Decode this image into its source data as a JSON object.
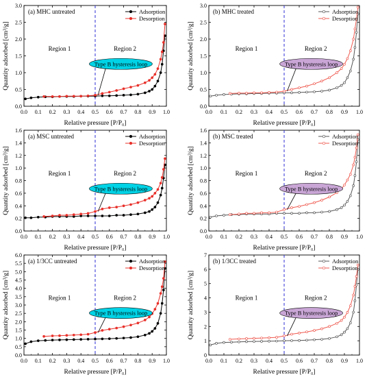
{
  "figure": {
    "x_axis_label": "Relative pressure [P/P₀]",
    "y_axis_label": "Quantity adsorbed [cm³/g]",
    "region1_label": "Region 1",
    "region2_label": "Region 2",
    "loop_label": "Type B hysteresis loop",
    "divider_x": 0.5
  },
  "chart_data": [
    {
      "type": "line",
      "panel_label": "(a) MHC untreated",
      "xlim": [
        0.0,
        1.0
      ],
      "ylim": [
        0.0,
        3.0
      ],
      "xticks": [
        "0.0",
        "0.1",
        "0.2",
        "0.3",
        "0.4",
        "0.5",
        "0.6",
        "0.7",
        "0.8",
        "0.9",
        "1.0"
      ],
      "yticks": [
        "0.0",
        "0.5",
        "1.0",
        "1.5",
        "2.0",
        "2.5",
        "3.0"
      ],
      "legend_position": "top-right",
      "grid": false,
      "loop_fill": "#00d3e6",
      "marker": "filled",
      "series": [
        {
          "name": "Adsorption",
          "color": "#000000",
          "x": [
            0.01,
            0.05,
            0.1,
            0.15,
            0.2,
            0.25,
            0.3,
            0.35,
            0.4,
            0.45,
            0.5,
            0.55,
            0.6,
            0.65,
            0.7,
            0.75,
            0.8,
            0.85,
            0.88,
            0.9,
            0.92,
            0.94,
            0.96,
            0.97,
            0.98,
            0.99
          ],
          "y": [
            0.22,
            0.25,
            0.27,
            0.28,
            0.28,
            0.29,
            0.29,
            0.29,
            0.3,
            0.3,
            0.3,
            0.31,
            0.31,
            0.32,
            0.33,
            0.34,
            0.36,
            0.4,
            0.45,
            0.5,
            0.6,
            0.75,
            1.0,
            1.25,
            1.65,
            2.1
          ]
        },
        {
          "name": "Desorption",
          "color": "#e8302a",
          "x": [
            0.14,
            0.2,
            0.25,
            0.3,
            0.35,
            0.4,
            0.45,
            0.5,
            0.55,
            0.6,
            0.65,
            0.7,
            0.75,
            0.8,
            0.85,
            0.88,
            0.9,
            0.92,
            0.94,
            0.96,
            0.97,
            0.98,
            0.99
          ],
          "y": [
            0.29,
            0.29,
            0.29,
            0.3,
            0.3,
            0.3,
            0.31,
            0.33,
            0.38,
            0.42,
            0.47,
            0.52,
            0.57,
            0.62,
            0.7,
            0.77,
            0.85,
            0.95,
            1.12,
            1.4,
            1.62,
            1.9,
            2.45
          ]
        }
      ]
    },
    {
      "type": "line",
      "panel_label": "(b) MHC treated",
      "xlim": [
        0.0,
        1.0
      ],
      "ylim": [
        0.0,
        3.0
      ],
      "xticks": [
        "0.0",
        "0.1",
        "0.2",
        "0.3",
        "0.4",
        "0.5",
        "0.6",
        "0.7",
        "0.8",
        "0.9",
        "1.0"
      ],
      "yticks": [
        "0.0",
        "0.5",
        "1.0",
        "1.5",
        "2.0",
        "2.5",
        "3.0"
      ],
      "legend_position": "top-right",
      "grid": false,
      "loop_fill": "#c9a6d6",
      "marker": "open",
      "series": [
        {
          "name": "Adsorption",
          "color": "#555555",
          "x": [
            0.01,
            0.05,
            0.1,
            0.15,
            0.2,
            0.25,
            0.3,
            0.35,
            0.4,
            0.45,
            0.5,
            0.55,
            0.6,
            0.65,
            0.7,
            0.75,
            0.8,
            0.85,
            0.88,
            0.9,
            0.92,
            0.94,
            0.96,
            0.97,
            0.98,
            0.99
          ],
          "y": [
            0.3,
            0.33,
            0.35,
            0.36,
            0.37,
            0.37,
            0.38,
            0.38,
            0.39,
            0.39,
            0.4,
            0.4,
            0.41,
            0.42,
            0.43,
            0.45,
            0.48,
            0.55,
            0.62,
            0.7,
            0.85,
            1.05,
            1.4,
            1.75,
            2.2,
            2.75
          ]
        },
        {
          "name": "Desorption",
          "color": "#ef5a50",
          "x": [
            0.14,
            0.2,
            0.25,
            0.3,
            0.35,
            0.4,
            0.45,
            0.5,
            0.55,
            0.6,
            0.65,
            0.7,
            0.75,
            0.8,
            0.85,
            0.88,
            0.9,
            0.92,
            0.94,
            0.96,
            0.97,
            0.98,
            0.99
          ],
          "y": [
            0.38,
            0.39,
            0.39,
            0.4,
            0.4,
            0.41,
            0.42,
            0.45,
            0.5,
            0.55,
            0.6,
            0.67,
            0.75,
            0.85,
            1.0,
            1.12,
            1.25,
            1.42,
            1.65,
            2.0,
            2.3,
            2.6,
            2.95
          ]
        }
      ]
    },
    {
      "type": "line",
      "panel_label": "(a) MSC untreated",
      "xlim": [
        0.0,
        1.0
      ],
      "ylim": [
        0.0,
        1.6
      ],
      "xticks": [
        "0.0",
        "0.1",
        "0.2",
        "0.3",
        "0.4",
        "0.5",
        "0.6",
        "0.7",
        "0.8",
        "0.9",
        "1.0"
      ],
      "yticks": [
        "0.0",
        "0.2",
        "0.4",
        "0.6",
        "0.8",
        "1.0",
        "1.2",
        "1.4",
        "1.6"
      ],
      "legend_position": "top-right",
      "grid": false,
      "loop_fill": "#00d3e6",
      "marker": "filled",
      "series": [
        {
          "name": "Adsorption",
          "color": "#000000",
          "x": [
            0.01,
            0.05,
            0.1,
            0.15,
            0.2,
            0.25,
            0.3,
            0.35,
            0.4,
            0.45,
            0.5,
            0.55,
            0.6,
            0.65,
            0.7,
            0.75,
            0.8,
            0.85,
            0.88,
            0.9,
            0.92,
            0.94,
            0.96,
            0.97,
            0.98,
            0.99
          ],
          "y": [
            0.21,
            0.21,
            0.22,
            0.22,
            0.23,
            0.23,
            0.23,
            0.23,
            0.24,
            0.24,
            0.24,
            0.24,
            0.24,
            0.25,
            0.25,
            0.26,
            0.27,
            0.29,
            0.31,
            0.34,
            0.38,
            0.45,
            0.57,
            0.68,
            0.84,
            1.05
          ]
        },
        {
          "name": "Desorption",
          "color": "#e8302a",
          "x": [
            0.14,
            0.2,
            0.25,
            0.3,
            0.35,
            0.4,
            0.45,
            0.5,
            0.55,
            0.6,
            0.65,
            0.7,
            0.75,
            0.8,
            0.85,
            0.88,
            0.9,
            0.92,
            0.94,
            0.96,
            0.97,
            0.98,
            0.99
          ],
          "y": [
            0.23,
            0.24,
            0.25,
            0.25,
            0.26,
            0.27,
            0.28,
            0.31,
            0.35,
            0.37,
            0.38,
            0.4,
            0.42,
            0.45,
            0.49,
            0.52,
            0.55,
            0.6,
            0.66,
            0.76,
            0.85,
            0.98,
            1.15
          ]
        }
      ]
    },
    {
      "type": "line",
      "panel_label": "(b) MSC treated",
      "xlim": [
        0.0,
        1.0
      ],
      "ylim": [
        0.0,
        1.6
      ],
      "xticks": [
        "0.0",
        "0.1",
        "0.2",
        "0.3",
        "0.4",
        "0.5",
        "0.6",
        "0.7",
        "0.8",
        "0.9",
        "1.0"
      ],
      "yticks": [
        "0.0",
        "0.2",
        "0.4",
        "0.6",
        "0.8",
        "1.0",
        "1.2",
        "1.4",
        "1.6"
      ],
      "legend_position": "top-right",
      "grid": false,
      "loop_fill": "#c9a6d6",
      "marker": "open",
      "series": [
        {
          "name": "Adsorption",
          "color": "#555555",
          "x": [
            0.01,
            0.05,
            0.1,
            0.15,
            0.2,
            0.25,
            0.3,
            0.35,
            0.4,
            0.45,
            0.5,
            0.55,
            0.6,
            0.65,
            0.7,
            0.75,
            0.8,
            0.85,
            0.88,
            0.9,
            0.92,
            0.94,
            0.96,
            0.97,
            0.98,
            0.99
          ],
          "y": [
            0.22,
            0.24,
            0.25,
            0.26,
            0.26,
            0.27,
            0.27,
            0.27,
            0.27,
            0.28,
            0.28,
            0.28,
            0.28,
            0.29,
            0.29,
            0.3,
            0.31,
            0.34,
            0.37,
            0.41,
            0.47,
            0.56,
            0.72,
            0.88,
            1.1,
            1.45
          ]
        },
        {
          "name": "Desorption",
          "color": "#ef5a50",
          "x": [
            0.14,
            0.2,
            0.25,
            0.3,
            0.35,
            0.4,
            0.45,
            0.5,
            0.55,
            0.6,
            0.65,
            0.7,
            0.75,
            0.8,
            0.85,
            0.88,
            0.9,
            0.92,
            0.94,
            0.96,
            0.97,
            0.98,
            0.99
          ],
          "y": [
            0.26,
            0.27,
            0.28,
            0.28,
            0.29,
            0.29,
            0.3,
            0.34,
            0.37,
            0.39,
            0.42,
            0.45,
            0.49,
            0.54,
            0.61,
            0.67,
            0.73,
            0.81,
            0.9,
            1.05,
            1.17,
            1.32,
            1.53
          ]
        }
      ]
    },
    {
      "type": "line",
      "panel_label": "(a) 1/3CC untreated",
      "xlim": [
        0.0,
        1.0
      ],
      "ylim": [
        0.0,
        6.0
      ],
      "xticks": [
        "0.0",
        "0.1",
        "0.2",
        "0.3",
        "0.4",
        "0.5",
        "0.6",
        "0.7",
        "0.8",
        "0.9",
        "1.0"
      ],
      "yticks": [
        "0.0",
        "0.5",
        "1.0",
        "1.5",
        "2.0",
        "2.5",
        "3.0",
        "3.5",
        "4.0",
        "4.5",
        "5.0",
        "5.5",
        "6.0"
      ],
      "legend_position": "top-right",
      "grid": false,
      "loop_fill": "#00d3e6",
      "marker": "filled",
      "series": [
        {
          "name": "Adsorption",
          "color": "#000000",
          "x": [
            0.01,
            0.05,
            0.1,
            0.15,
            0.2,
            0.25,
            0.3,
            0.35,
            0.4,
            0.45,
            0.5,
            0.55,
            0.6,
            0.65,
            0.7,
            0.75,
            0.8,
            0.85,
            0.88,
            0.9,
            0.92,
            0.94,
            0.96,
            0.97,
            0.98,
            0.99
          ],
          "y": [
            0.68,
            0.8,
            0.86,
            0.88,
            0.9,
            0.91,
            0.92,
            0.93,
            0.94,
            0.95,
            0.96,
            0.97,
            0.98,
            1.0,
            1.02,
            1.05,
            1.1,
            1.2,
            1.3,
            1.42,
            1.6,
            1.9,
            2.5,
            3.1,
            3.9,
            5.2
          ]
        },
        {
          "name": "Desorption",
          "color": "#e8302a",
          "x": [
            0.14,
            0.2,
            0.25,
            0.3,
            0.35,
            0.4,
            0.45,
            0.5,
            0.55,
            0.6,
            0.65,
            0.7,
            0.75,
            0.8,
            0.85,
            0.88,
            0.9,
            0.92,
            0.94,
            0.96,
            0.97,
            0.98,
            0.99
          ],
          "y": [
            1.12,
            1.15,
            1.16,
            1.18,
            1.2,
            1.22,
            1.25,
            1.35,
            1.48,
            1.55,
            1.62,
            1.7,
            1.8,
            1.92,
            2.1,
            2.28,
            2.48,
            2.75,
            3.1,
            3.7,
            4.1,
            4.6,
            5.6
          ]
        }
      ]
    },
    {
      "type": "line",
      "panel_label": "(b) 1/3CC treated",
      "xlim": [
        0.0,
        1.0
      ],
      "ylim": [
        0.0,
        7.0
      ],
      "xticks": [
        "0.0",
        "0.1",
        "0.2",
        "0.3",
        "0.4",
        "0.5",
        "0.6",
        "0.7",
        "0.8",
        "0.9",
        "1.0"
      ],
      "yticks": [
        "0",
        "1",
        "2",
        "3",
        "4",
        "5",
        "6",
        "7"
      ],
      "legend_position": "top-right",
      "grid": false,
      "loop_fill": "#c9a6d6",
      "marker": "open",
      "series": [
        {
          "name": "Adsorption",
          "color": "#555555",
          "x": [
            0.01,
            0.05,
            0.1,
            0.15,
            0.2,
            0.25,
            0.3,
            0.35,
            0.4,
            0.45,
            0.5,
            0.55,
            0.6,
            0.65,
            0.7,
            0.75,
            0.8,
            0.85,
            0.88,
            0.9,
            0.92,
            0.94,
            0.96,
            0.97,
            0.98,
            0.99
          ],
          "y": [
            0.7,
            0.82,
            0.88,
            0.9,
            0.92,
            0.94,
            0.95,
            0.96,
            0.97,
            0.98,
            1.0,
            1.01,
            1.02,
            1.04,
            1.07,
            1.1,
            1.16,
            1.28,
            1.42,
            1.6,
            1.85,
            2.25,
            3.0,
            3.8,
            4.9,
            6.0
          ]
        },
        {
          "name": "Desorption",
          "color": "#ef5a50",
          "x": [
            0.14,
            0.2,
            0.25,
            0.3,
            0.35,
            0.4,
            0.45,
            0.5,
            0.55,
            0.6,
            0.65,
            0.7,
            0.75,
            0.8,
            0.85,
            0.88,
            0.9,
            0.92,
            0.94,
            0.96,
            0.97,
            0.98,
            0.99
          ],
          "y": [
            1.1,
            1.13,
            1.15,
            1.17,
            1.19,
            1.21,
            1.24,
            1.34,
            1.46,
            1.54,
            1.62,
            1.72,
            1.84,
            2.0,
            2.22,
            2.42,
            2.65,
            2.98,
            3.45,
            4.2,
            4.8,
            5.5,
            6.3
          ]
        }
      ]
    }
  ]
}
